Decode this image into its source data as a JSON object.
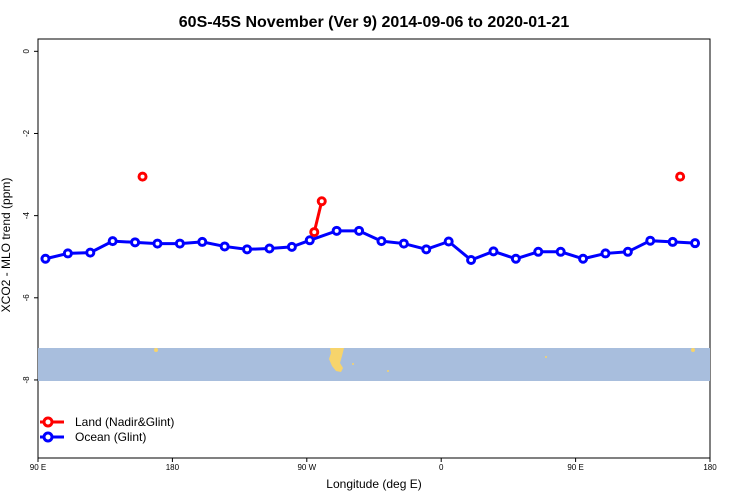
{
  "chart_data": {
    "type": "line",
    "title": "60S-45S November (Ver 9)   2014-09-06 to 2020-01-21",
    "xlabel": "Longitude (deg E)",
    "ylabel": "XCO2 - MLO trend (ppm)",
    "x_ticks": [
      "90 E",
      "180",
      "90 W",
      "0",
      "90 E",
      "180"
    ],
    "y_ticks": [
      "0",
      "-2",
      "-4",
      "-6",
      "-8"
    ],
    "ylim": [
      -9.9,
      0.3
    ],
    "grid": false,
    "legend_position": "bottom-left",
    "series": [
      {
        "name": "Land (Nadir&Glint)",
        "color": "#ff0000",
        "x": [
          160,
          275,
          280,
          520
        ],
        "y": [
          -3.05,
          -4.4,
          -3.65,
          -3.05
        ],
        "segments": [
          [
            0
          ],
          [
            1,
            2
          ],
          [
            3
          ]
        ]
      },
      {
        "name": "Ocean (Glint)",
        "color": "#0000ff",
        "x": [
          95,
          110,
          125,
          140,
          155,
          170,
          185,
          200,
          215,
          230,
          245,
          260,
          272,
          290,
          305,
          320,
          335,
          350,
          365,
          380,
          395,
          410,
          425,
          440,
          455,
          470,
          485,
          500,
          515,
          530
        ],
        "y": [
          -5.05,
          -4.92,
          -4.9,
          -4.62,
          -4.65,
          -4.68,
          -4.68,
          -4.64,
          -4.75,
          -4.82,
          -4.8,
          -4.76,
          -4.6,
          -4.37,
          -4.37,
          -4.62,
          -4.68,
          -4.82,
          -4.63,
          -5.08,
          -4.87,
          -5.05,
          -4.88,
          -4.88,
          -5.05,
          -4.92,
          -4.88,
          -4.61,
          -4.64,
          -4.67
        ]
      }
    ]
  }
}
